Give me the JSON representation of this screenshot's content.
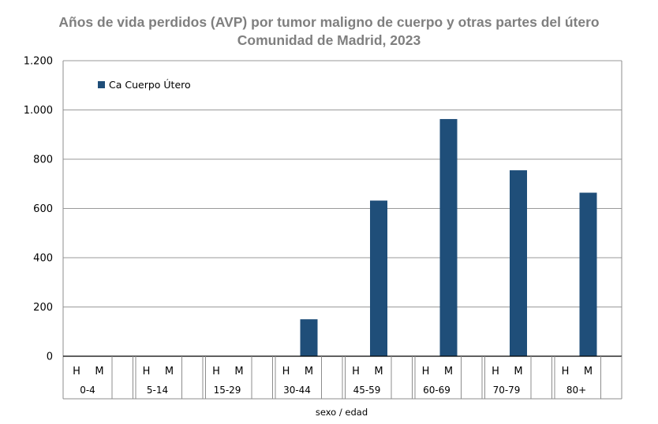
{
  "title": {
    "line1": "Años de vida perdidos (AVP) por tumor maligno de cuerpo y otras partes del útero",
    "line2": "Comunidad de Madrid, 2023"
  },
  "chart_data": {
    "type": "bar",
    "title": "Años de vida perdidos (AVP) por tumor maligno de cuerpo y otras partes del útero\nComunidad de Madrid, 2023",
    "xlabel": "sexo / edad",
    "ylabel": "",
    "ylim": [
      0,
      1200
    ],
    "yticks": [
      0,
      200,
      400,
      600,
      800,
      1000,
      1200
    ],
    "ytick_labels": [
      "0",
      "200",
      "400",
      "600",
      "800",
      "1.000",
      "1.200"
    ],
    "grid": true,
    "legend_position": "top-left",
    "age_groups": [
      "0-4",
      "5-14",
      "15-29",
      "30-44",
      "45-59",
      "60-69",
      "70-79",
      "80+"
    ],
    "sex_labels": [
      "H",
      "M"
    ],
    "series": [
      {
        "name": "Ca Cuerpo Útero",
        "color": "#1f4e79",
        "values": [
          [
            0,
            0
          ],
          [
            0,
            0
          ],
          [
            0,
            0
          ],
          [
            0,
            150
          ],
          [
            0,
            632
          ],
          [
            0,
            963
          ],
          [
            0,
            755
          ],
          [
            0,
            664
          ]
        ]
      }
    ]
  }
}
